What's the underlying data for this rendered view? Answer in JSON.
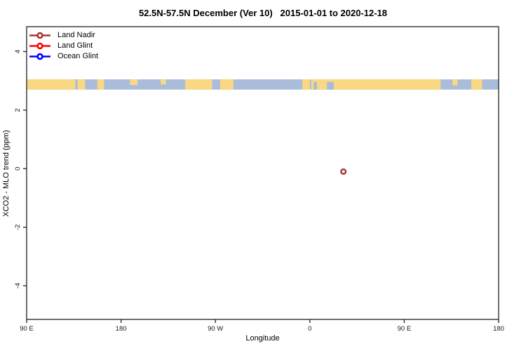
{
  "chart_data": {
    "type": "scatter",
    "title": "52.5N-57.5N December (Ver 10)   2015-01-01 to 2020-12-18",
    "xlabel": "Longitude",
    "ylabel": "XCO2 - MLO trend (ppm)",
    "x_tick_labels": [
      "90 E",
      "180",
      "90 W",
      "0",
      "90 E",
      "180"
    ],
    "y_ticks": [
      4,
      2,
      0,
      -2,
      -4
    ],
    "ylim": [
      -5.15,
      4.85
    ],
    "grid": false,
    "legend_position": "top-left",
    "frame_color": "#2f2f2f",
    "series": [
      {
        "name": "Land Nadir",
        "color": "#aa3333",
        "points": [
          {
            "lon_deg_east": 32,
            "xco2_minus_mlo_ppm": -0.1
          }
        ]
      },
      {
        "name": "Land Glint",
        "color": "#ff0000",
        "points": []
      },
      {
        "name": "Ocean Glint",
        "color": "#0000ff",
        "points": []
      }
    ],
    "map_band": {
      "description": "coastline strip along 52.5N-57.5N",
      "y_top_ppm": 3.05,
      "y_bottom_ppm": 2.7,
      "land_color": "#fad883",
      "ocean_color": "#a9bdda",
      "land_segments": [
        [
          0.0,
          0.103
        ],
        [
          0.108,
          0.124
        ],
        [
          0.15,
          0.164
        ],
        [
          0.219,
          0.235,
          0.55
        ],
        [
          0.284,
          0.295,
          0.5
        ],
        [
          0.336,
          0.393
        ],
        [
          0.41,
          0.438
        ],
        [
          0.584,
          0.6
        ],
        [
          0.603,
          0.877
        ],
        [
          0.902,
          0.913,
          0.6
        ],
        [
          0.942,
          0.965
        ]
      ],
      "ocean_patches": [
        [
          0.608,
          0.615
        ],
        [
          0.636,
          0.651
        ]
      ]
    }
  }
}
